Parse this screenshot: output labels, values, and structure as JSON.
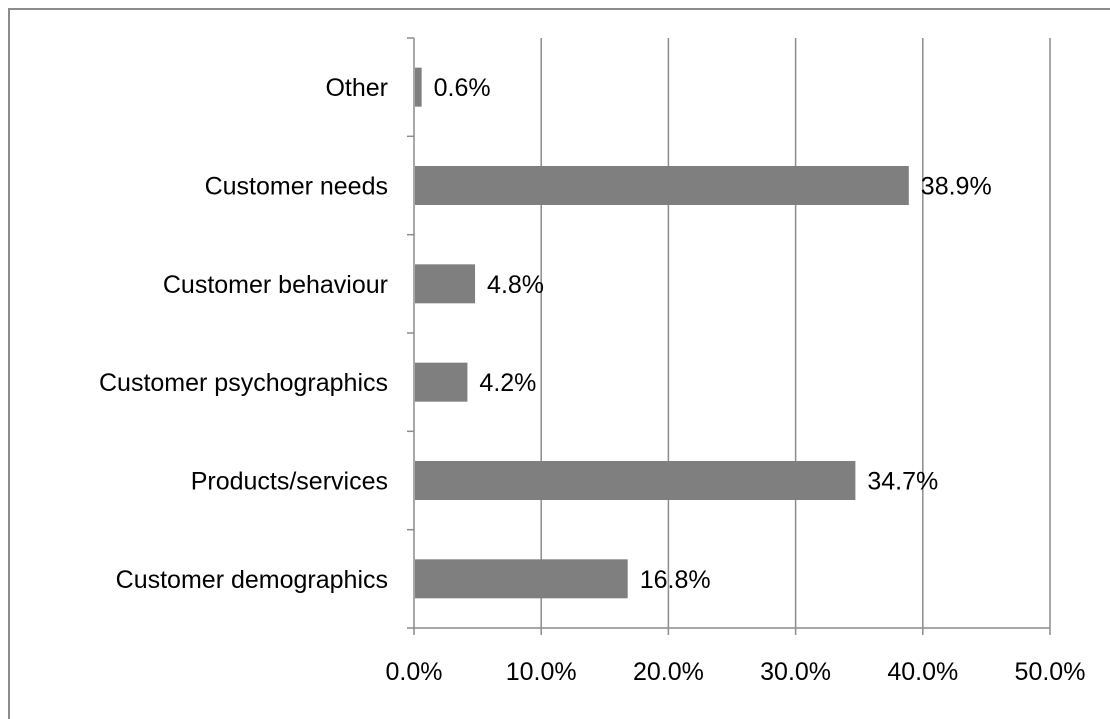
{
  "chart_data": {
    "type": "bar",
    "orientation": "horizontal",
    "categories": [
      "Customer demographics",
      "Products/services",
      "Customer psychographics",
      "Customer behaviour",
      "Customer needs",
      "Other"
    ],
    "values": [
      16.8,
      34.7,
      4.2,
      4.8,
      38.9,
      0.6
    ],
    "data_labels": [
      "16.8%",
      "34.7%",
      "4.2%",
      "4.8%",
      "38.9%",
      "0.6%"
    ],
    "xlim": [
      0,
      50
    ],
    "x_ticks": [
      0,
      10,
      20,
      30,
      40,
      50
    ],
    "x_tick_labels": [
      "0.0%",
      "10.0%",
      "20.0%",
      "30.0%",
      "40.0%",
      "50.0%"
    ],
    "grid": "vertical",
    "legend": "none",
    "bar_color": "#7f7f7f",
    "grid_color": "#8c8c8c"
  }
}
